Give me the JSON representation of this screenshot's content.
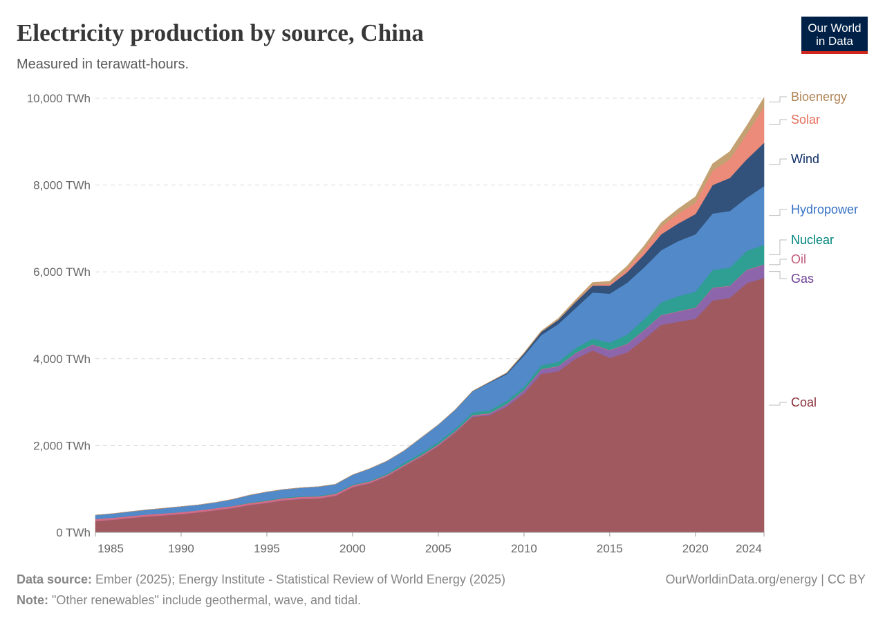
{
  "header": {
    "title": "Electricity production by source, China",
    "subtitle": "Measured in terawatt-hours.",
    "logo_text": "Our World in Data"
  },
  "footer": {
    "source_label": "Data source:",
    "source_text": " Ember (2025); Energy Institute - Statistical Review of World Energy (2025)",
    "note_label": "Note:",
    "note_text": " \"Other renewables\" include geothermal, wave, and tidal.",
    "credit": "OurWorldinData.org/energy | CC BY"
  },
  "chart_data": {
    "type": "area",
    "stacked": true,
    "title": "Electricity production by source, China",
    "ylabel": "",
    "xlabel": "",
    "y_unit": "TWh",
    "ylim": [
      0,
      10000
    ],
    "xlim": [
      1985,
      2024
    ],
    "yticks": [
      0,
      2000,
      4000,
      6000,
      8000,
      10000
    ],
    "ytick_labels": [
      "0 TWh",
      "2,000 TWh",
      "4,000 TWh",
      "6,000 TWh",
      "8,000 TWh",
      "10,000 TWh"
    ],
    "xticks": [
      1985,
      1990,
      1995,
      2000,
      2005,
      2010,
      2015,
      2020,
      2024
    ],
    "grid": "horizontal dashed",
    "legend": "right, inline labels",
    "x": [
      1985,
      1986,
      1987,
      1988,
      1989,
      1990,
      1991,
      1992,
      1993,
      1994,
      1995,
      1996,
      1997,
      1998,
      1999,
      2000,
      2001,
      2002,
      2003,
      2004,
      2005,
      2006,
      2007,
      2008,
      2009,
      2010,
      2011,
      2012,
      2013,
      2014,
      2015,
      2016,
      2017,
      2018,
      2019,
      2020,
      2021,
      2022,
      2023,
      2024
    ],
    "series": [
      {
        "name": "Coal",
        "fill": "#a05a5f",
        "label_color": "#883039",
        "values": [
          260,
          290,
          330,
          365,
          390,
          420,
          460,
          510,
          560,
          630,
          680,
          740,
          770,
          780,
          840,
          1040,
          1130,
          1290,
          1520,
          1740,
          1990,
          2300,
          2660,
          2700,
          2900,
          3200,
          3650,
          3710,
          4000,
          4190,
          4020,
          4140,
          4450,
          4780,
          4850,
          4920,
          5340,
          5400,
          5740,
          5860
        ]
      },
      {
        "name": "Gas",
        "fill": "#8c65aa",
        "label_color": "#6d3e91",
        "values": [
          2,
          2,
          2,
          2,
          3,
          3,
          3,
          3,
          3,
          3,
          3,
          3,
          3,
          4,
          4,
          6,
          7,
          8,
          8,
          10,
          12,
          14,
          20,
          30,
          50,
          70,
          100,
          110,
          120,
          130,
          170,
          190,
          200,
          215,
          233,
          247,
          287,
          270,
          300,
          300
        ]
      },
      {
        "name": "Oil",
        "fill": "#d46b86",
        "label_color": "#c05979",
        "values": [
          45,
          45,
          45,
          45,
          45,
          45,
          45,
          45,
          45,
          45,
          45,
          45,
          45,
          45,
          45,
          40,
          35,
          30,
          25,
          25,
          25,
          20,
          20,
          15,
          10,
          10,
          10,
          10,
          10,
          10,
          10,
          10,
          10,
          10,
          10,
          10,
          10,
          10,
          10,
          10
        ]
      },
      {
        "name": "Nuclear",
        "fill": "#2f9e93",
        "label_color": "#00847e",
        "values": [
          0,
          0,
          0,
          0,
          0,
          0,
          0,
          0,
          2,
          14,
          13,
          14,
          14,
          14,
          15,
          17,
          17,
          25,
          43,
          50,
          53,
          55,
          62,
          68,
          70,
          74,
          86,
          97,
          112,
          133,
          171,
          213,
          248,
          295,
          348,
          366,
          408,
          418,
          435,
          451
        ]
      },
      {
        "name": "Hydropower",
        "fill": "#5189c9",
        "label_color": "#3571c3",
        "values": [
          92,
          95,
          100,
          109,
          118,
          127,
          125,
          131,
          151,
          167,
          191,
          188,
          196,
          209,
          204,
          222,
          278,
          288,
          284,
          354,
          397,
          436,
          485,
          637,
          616,
          722,
          699,
          872,
          920,
          1064,
          1127,
          1193,
          1194,
          1199,
          1270,
          1322,
          1300,
          1303,
          1226,
          1354
        ]
      },
      {
        "name": "Wind",
        "fill": "#32527b",
        "label_color": "#0f2e68",
        "values": [
          0,
          0,
          0,
          0,
          0,
          0,
          0,
          0,
          0,
          0,
          0,
          0,
          0,
          0,
          0,
          1,
          1,
          1,
          1,
          1,
          2,
          4,
          6,
          13,
          27,
          45,
          70,
          96,
          141,
          156,
          186,
          241,
          295,
          366,
          406,
          467,
          656,
          762,
          886,
          998
        ]
      },
      {
        "name": "Solar",
        "fill": "#ec8b7a",
        "label_color": "#e56e5a",
        "values": [
          0,
          0,
          0,
          0,
          0,
          0,
          0,
          0,
          0,
          0,
          0,
          0,
          0,
          0,
          0,
          0,
          0,
          0,
          0,
          0,
          0,
          0,
          0,
          0,
          0,
          1,
          3,
          4,
          8,
          23,
          45,
          75,
          118,
          177,
          225,
          261,
          327,
          427,
          584,
          834
        ]
      },
      {
        "name": "Bioenergy",
        "fill": "#c4a172",
        "label_color": "#b18557",
        "values": [
          0,
          0,
          0,
          0,
          0,
          0,
          0,
          0,
          0,
          0,
          0,
          0,
          0,
          0,
          0,
          0,
          0,
          0,
          0,
          0,
          1,
          2,
          3,
          5,
          8,
          15,
          20,
          30,
          40,
          50,
          55,
          65,
          80,
          90,
          110,
          135,
          160,
          180,
          190,
          210
        ]
      }
    ]
  }
}
